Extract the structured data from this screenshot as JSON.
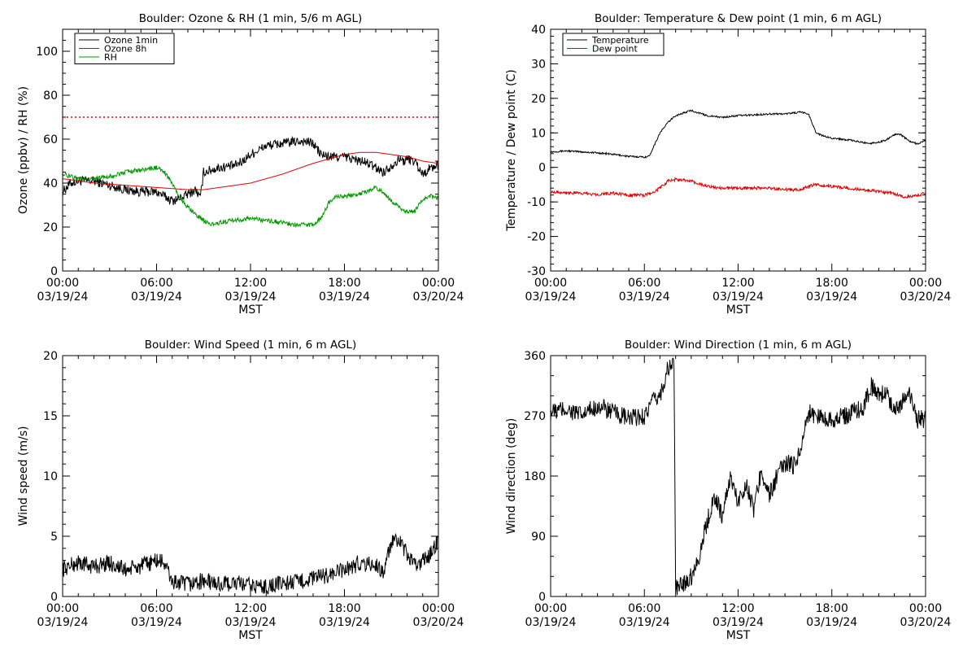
{
  "chart_data": [
    {
      "type": "line",
      "title": "Boulder: Ozone & RH (1 min, 5/6 m AGL)",
      "xlabel": "MST",
      "ylabel": "Ozone (ppbv) / RH (%)",
      "x_ticks": [
        {
          "time": "00:00",
          "date": "03/19/24"
        },
        {
          "time": "06:00",
          "date": "03/19/24"
        },
        {
          "time": "12:00",
          "date": "03/19/24"
        },
        {
          "time": "18:00",
          "date": "03/19/24"
        },
        {
          "time": "00:00",
          "date": "03/20/24"
        }
      ],
      "xlim_hours": [
        0,
        24
      ],
      "ylim": [
        0,
        110
      ],
      "y_ticks": [
        0,
        20,
        40,
        60,
        80,
        100
      ],
      "y_ticks_minor_step": 5,
      "legend_position": "top-left",
      "grid": false,
      "reference_lines": [
        {
          "y": 70,
          "color": "#e00000",
          "style": "dotted"
        }
      ],
      "series": [
        {
          "name": "Ozone 1min",
          "color": "#000000",
          "noise": 2.2,
          "x": [
            0,
            0.5,
            1,
            2,
            3,
            4,
            5,
            6,
            6.5,
            7,
            7.5,
            8,
            8.5,
            8.8,
            9,
            10,
            11,
            11.5,
            12,
            13,
            14,
            15,
            15.5,
            16,
            16.5,
            17,
            18,
            19,
            19.5,
            20,
            20.5,
            21,
            21.5,
            21.8,
            22,
            22.5,
            23,
            23.5,
            24
          ],
          "y": [
            36,
            40,
            41,
            41,
            39,
            37,
            36,
            36,
            34,
            32,
            33,
            35,
            37,
            33,
            45,
            47,
            48,
            50,
            53,
            57,
            58,
            59,
            59,
            58,
            53,
            52,
            52,
            50,
            49,
            47,
            45,
            48,
            51,
            50,
            51,
            50,
            44,
            47,
            48
          ]
        },
        {
          "name": "Ozone 8h",
          "color": "#e00000",
          "noise": 0,
          "x": [
            0,
            2,
            4,
            6,
            8,
            9,
            10,
            12,
            14,
            16,
            18,
            19,
            20,
            21,
            22,
            23,
            24
          ],
          "y": [
            42,
            40,
            39,
            38,
            37,
            37,
            38,
            40,
            44,
            49,
            53,
            54,
            54,
            53,
            52,
            50,
            49
          ]
        },
        {
          "name": "RH",
          "color": "#009900",
          "noise": 1.0,
          "x": [
            0,
            1,
            2,
            3,
            4,
            5,
            6,
            6.5,
            7,
            7.5,
            8,
            8.5,
            9,
            9.5,
            10,
            11,
            12,
            13,
            14,
            15,
            16,
            16.5,
            17,
            17.5,
            18,
            19,
            20,
            20.5,
            21,
            21.5,
            22,
            22.5,
            23,
            23.5,
            24
          ],
          "y": [
            44,
            42,
            42,
            43,
            45,
            46,
            47,
            45,
            40,
            33,
            29,
            26,
            23,
            21,
            22,
            23,
            24,
            23,
            22,
            21,
            21,
            24,
            31,
            34,
            34,
            35,
            38,
            36,
            32,
            29,
            27,
            27,
            33,
            34,
            33
          ]
        }
      ]
    },
    {
      "type": "line",
      "title": "Boulder: Temperature & Dew point (1 min, 6 m AGL)",
      "xlabel": "MST",
      "ylabel": "Temperature / Dew point (C)",
      "x_ticks": [
        {
          "time": "00:00",
          "date": "03/19/24"
        },
        {
          "time": "06:00",
          "date": "03/19/24"
        },
        {
          "time": "12:00",
          "date": "03/19/24"
        },
        {
          "time": "18:00",
          "date": "03/19/24"
        },
        {
          "time": "00:00",
          "date": "03/20/24"
        }
      ],
      "xlim_hours": [
        0,
        24
      ],
      "ylim": [
        -30,
        40
      ],
      "y_ticks": [
        -30,
        -20,
        -10,
        0,
        10,
        20,
        30,
        40
      ],
      "y_ticks_minor_step": 2,
      "legend_position": "top-left",
      "grid": false,
      "reference_lines": [],
      "series": [
        {
          "name": "Temperature",
          "color": "#000000",
          "noise": 0.25,
          "x": [
            0,
            1,
            2,
            3,
            4,
            5,
            6,
            6.3,
            7,
            7.5,
            8,
            9,
            10,
            11,
            12,
            13,
            14,
            15,
            16,
            16.5,
            17,
            17.5,
            18,
            19,
            20,
            20.5,
            21,
            21.5,
            22,
            22.3,
            22.7,
            23,
            23.5,
            24
          ],
          "y": [
            4.5,
            4.8,
            4.5,
            4.2,
            3.8,
            3.2,
            3.0,
            3.2,
            10,
            13,
            15,
            16.5,
            15,
            14.5,
            15,
            15.2,
            15.5,
            15.5,
            16,
            15.5,
            10,
            9,
            8.5,
            8,
            7.2,
            7,
            7.3,
            8,
            9.5,
            9.8,
            8.5,
            7.5,
            6.8,
            7.8
          ]
        },
        {
          "name": "Dew point",
          "color": "#e00000",
          "noise": 0.45,
          "x": [
            0,
            1,
            2,
            3,
            4,
            5,
            6,
            6.5,
            7,
            7.5,
            8,
            9,
            10,
            11,
            12,
            13,
            14,
            15,
            16,
            16.5,
            17,
            18,
            19,
            20,
            21,
            22,
            22.5,
            23,
            23.5,
            24
          ],
          "y": [
            -7,
            -7.3,
            -7.5,
            -7.8,
            -7.5,
            -8,
            -8,
            -7.5,
            -6,
            -4,
            -3.5,
            -4,
            -5.5,
            -6,
            -6,
            -6,
            -6,
            -6.5,
            -6.5,
            -5.5,
            -5,
            -5.5,
            -6,
            -6.5,
            -7,
            -7.5,
            -8.5,
            -8.5,
            -8,
            -7.5
          ]
        }
      ]
    },
    {
      "type": "line",
      "title": "Boulder: Wind Speed (1 min, 6 m AGL)",
      "xlabel": "MST",
      "ylabel": "Wind speed (m/s)",
      "x_ticks": [
        {
          "time": "00:00",
          "date": "03/19/24"
        },
        {
          "time": "06:00",
          "date": "03/19/24"
        },
        {
          "time": "12:00",
          "date": "03/19/24"
        },
        {
          "time": "18:00",
          "date": "03/19/24"
        },
        {
          "time": "00:00",
          "date": "03/20/24"
        }
      ],
      "xlim_hours": [
        0,
        24
      ],
      "ylim": [
        0,
        20
      ],
      "y_ticks": [
        0,
        5,
        10,
        15,
        20
      ],
      "y_ticks_minor_step": 1,
      "legend_position": "none",
      "grid": false,
      "reference_lines": [],
      "series": [
        {
          "name": "",
          "color": "#000000",
          "noise": 0.7,
          "x": [
            0,
            1,
            2,
            3,
            4,
            5,
            6,
            6.5,
            7,
            8,
            9,
            10,
            11,
            12,
            13,
            14,
            15,
            16,
            17,
            18,
            19,
            20,
            20.5,
            21,
            21.5,
            22,
            22.5,
            23,
            23.5,
            24
          ],
          "y": [
            2.3,
            2.8,
            2.5,
            2.8,
            2.2,
            2.5,
            3.0,
            2.8,
            1.2,
            1.0,
            1.3,
            1.0,
            1.1,
            0.9,
            0.8,
            1.1,
            1.2,
            1.5,
            1.8,
            2.2,
            2.8,
            2.6,
            2.0,
            4.5,
            4.5,
            3.5,
            2.5,
            3.0,
            3.5,
            4.8
          ]
        }
      ]
    },
    {
      "type": "line",
      "title": "Boulder: Wind Direction (1 min, 6 m AGL)",
      "xlabel": "MST",
      "ylabel": "Wind direction (deg)",
      "x_ticks": [
        {
          "time": "00:00",
          "date": "03/19/24"
        },
        {
          "time": "06:00",
          "date": "03/19/24"
        },
        {
          "time": "12:00",
          "date": "03/19/24"
        },
        {
          "time": "18:00",
          "date": "03/19/24"
        },
        {
          "time": "00:00",
          "date": "03/20/24"
        }
      ],
      "xlim_hours": [
        0,
        24
      ],
      "ylim": [
        0,
        360
      ],
      "y_ticks": [
        0,
        90,
        180,
        270,
        360
      ],
      "y_ticks_minor_step": 30,
      "legend_position": "none",
      "grid": false,
      "reference_lines": [],
      "series": [
        {
          "name": "",
          "color": "#000000",
          "noise": 14,
          "x": [
            0,
            1,
            2,
            3,
            4,
            5,
            6,
            6.5,
            7,
            7.5,
            7.9,
            8,
            8.5,
            9,
            9.5,
            10,
            10.5,
            11,
            11.5,
            12,
            12.5,
            13,
            13.5,
            14,
            14.5,
            15,
            15.5,
            16,
            16.5,
            17,
            18,
            19,
            19.5,
            20,
            20.5,
            21,
            21.5,
            22,
            22.5,
            23,
            23.5,
            24
          ],
          "y": [
            275,
            280,
            270,
            285,
            275,
            265,
            270,
            290,
            300,
            340,
            350,
            10,
            20,
            30,
            60,
            110,
            150,
            120,
            180,
            140,
            170,
            130,
            190,
            150,
            180,
            200,
            195,
            220,
            275,
            270,
            265,
            270,
            280,
            280,
            315,
            300,
            305,
            280,
            290,
            300,
            265,
            265
          ]
        }
      ]
    }
  ]
}
